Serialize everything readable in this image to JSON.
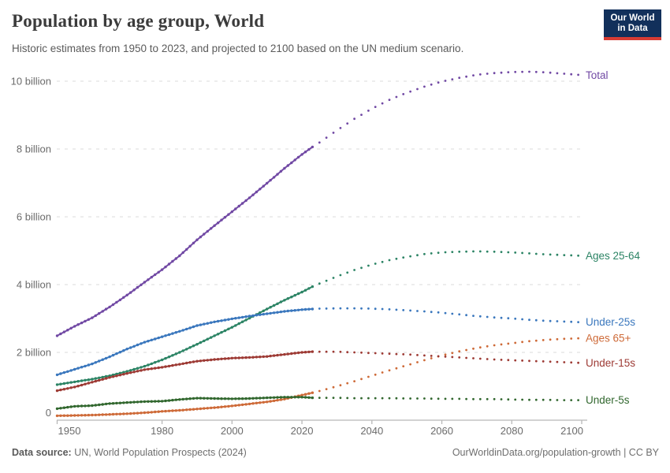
{
  "header": {
    "title": "Population by age group, World",
    "subtitle": "Historic estimates from 1950 to 2023, and projected to 2100 based on the UN medium scenario.",
    "logo": {
      "line1": "Our World",
      "line2": "in Data",
      "bg_color": "#12305b",
      "accent_color": "#d73c34"
    }
  },
  "footer": {
    "source_label": "Data source:",
    "source_text": " UN, World Population Prospects (2024)",
    "credit": "OurWorldinData.org/population-growth | CC BY"
  },
  "chart_data": {
    "type": "line",
    "title": "Population by age group, World",
    "unit": "billion people",
    "grid": true,
    "legend_position": "right-of-line-ends",
    "projection_start": 2023,
    "x_axis": {
      "range": [
        1950,
        2100
      ],
      "ticks": [
        1950,
        1980,
        2000,
        2020,
        2040,
        2060,
        2080,
        2100
      ]
    },
    "y_axis": {
      "range": [
        0,
        10.4
      ],
      "ticks": [
        0,
        2,
        4,
        6,
        8,
        10
      ],
      "tick_labels": [
        "0",
        "2 billion",
        "4 billion",
        "6 billion",
        "8 billion",
        "10 billion"
      ]
    },
    "colors": {
      "grid": "#e2e2e2",
      "axis": "#b8b8b8",
      "tick_label": "#6b6b6b"
    },
    "series": [
      {
        "name": "total",
        "label": "Total",
        "color": "#7149a4",
        "historic": [
          [
            1950,
            2.49
          ],
          [
            1955,
            2.77
          ],
          [
            1960,
            3.02
          ],
          [
            1965,
            3.34
          ],
          [
            1970,
            3.69
          ],
          [
            1975,
            4.07
          ],
          [
            1980,
            4.44
          ],
          [
            1985,
            4.85
          ],
          [
            1990,
            5.32
          ],
          [
            1995,
            5.74
          ],
          [
            2000,
            6.15
          ],
          [
            2005,
            6.56
          ],
          [
            2010,
            6.99
          ],
          [
            2015,
            7.43
          ],
          [
            2020,
            7.84
          ],
          [
            2023,
            8.06
          ]
        ],
        "projected": [
          [
            2023,
            8.06
          ],
          [
            2025,
            8.19
          ],
          [
            2030,
            8.55
          ],
          [
            2035,
            8.89
          ],
          [
            2040,
            9.19
          ],
          [
            2045,
            9.45
          ],
          [
            2050,
            9.66
          ],
          [
            2055,
            9.84
          ],
          [
            2060,
            9.99
          ],
          [
            2065,
            10.1
          ],
          [
            2070,
            10.19
          ],
          [
            2075,
            10.24
          ],
          [
            2080,
            10.27
          ],
          [
            2085,
            10.28
          ],
          [
            2090,
            10.26
          ],
          [
            2095,
            10.22
          ],
          [
            2100,
            10.18
          ]
        ]
      },
      {
        "name": "ages-25-64",
        "label": "Ages 25-64",
        "color": "#2c8465",
        "historic": [
          [
            1950,
            1.05
          ],
          [
            1955,
            1.13
          ],
          [
            1960,
            1.21
          ],
          [
            1965,
            1.31
          ],
          [
            1970,
            1.44
          ],
          [
            1975,
            1.59
          ],
          [
            1980,
            1.78
          ],
          [
            1985,
            2.0
          ],
          [
            1990,
            2.24
          ],
          [
            1995,
            2.49
          ],
          [
            2000,
            2.74
          ],
          [
            2005,
            3.01
          ],
          [
            2010,
            3.28
          ],
          [
            2015,
            3.54
          ],
          [
            2020,
            3.78
          ],
          [
            2023,
            3.94
          ]
        ],
        "projected": [
          [
            2023,
            3.94
          ],
          [
            2025,
            4.03
          ],
          [
            2030,
            4.24
          ],
          [
            2035,
            4.43
          ],
          [
            2040,
            4.59
          ],
          [
            2045,
            4.72
          ],
          [
            2050,
            4.82
          ],
          [
            2055,
            4.9
          ],
          [
            2060,
            4.95
          ],
          [
            2065,
            4.97
          ],
          [
            2070,
            4.98
          ],
          [
            2075,
            4.97
          ],
          [
            2080,
            4.95
          ],
          [
            2085,
            4.92
          ],
          [
            2090,
            4.89
          ],
          [
            2095,
            4.87
          ],
          [
            2100,
            4.85
          ]
        ]
      },
      {
        "name": "under-25s",
        "label": "Under-25s",
        "color": "#3a77bd",
        "historic": [
          [
            1950,
            1.34
          ],
          [
            1955,
            1.5
          ],
          [
            1960,
            1.66
          ],
          [
            1965,
            1.87
          ],
          [
            1970,
            2.1
          ],
          [
            1975,
            2.3
          ],
          [
            1980,
            2.46
          ],
          [
            1985,
            2.62
          ],
          [
            1990,
            2.79
          ],
          [
            1995,
            2.9
          ],
          [
            2000,
            2.99
          ],
          [
            2005,
            3.07
          ],
          [
            2010,
            3.14
          ],
          [
            2015,
            3.21
          ],
          [
            2020,
            3.26
          ],
          [
            2023,
            3.28
          ]
        ],
        "projected": [
          [
            2023,
            3.28
          ],
          [
            2025,
            3.29
          ],
          [
            2030,
            3.3
          ],
          [
            2035,
            3.3
          ],
          [
            2040,
            3.29
          ],
          [
            2045,
            3.27
          ],
          [
            2050,
            3.24
          ],
          [
            2055,
            3.21
          ],
          [
            2060,
            3.17
          ],
          [
            2065,
            3.12
          ],
          [
            2070,
            3.07
          ],
          [
            2075,
            3.03
          ],
          [
            2080,
            3.0
          ],
          [
            2085,
            2.96
          ],
          [
            2090,
            2.93
          ],
          [
            2095,
            2.91
          ],
          [
            2100,
            2.89
          ]
        ]
      },
      {
        "name": "ages-65-plus",
        "label": "Ages 65+",
        "color": "#ce6a38",
        "historic": [
          [
            1950,
            0.13
          ],
          [
            1955,
            0.14
          ],
          [
            1960,
            0.15
          ],
          [
            1965,
            0.17
          ],
          [
            1970,
            0.19
          ],
          [
            1975,
            0.22
          ],
          [
            1980,
            0.26
          ],
          [
            1985,
            0.29
          ],
          [
            1990,
            0.33
          ],
          [
            1995,
            0.37
          ],
          [
            2000,
            0.42
          ],
          [
            2005,
            0.48
          ],
          [
            2010,
            0.54
          ],
          [
            2015,
            0.62
          ],
          [
            2020,
            0.74
          ],
          [
            2023,
            0.81
          ]
        ],
        "projected": [
          [
            2023,
            0.81
          ],
          [
            2025,
            0.86
          ],
          [
            2030,
            1.0
          ],
          [
            2035,
            1.15
          ],
          [
            2040,
            1.31
          ],
          [
            2045,
            1.47
          ],
          [
            2050,
            1.62
          ],
          [
            2055,
            1.77
          ],
          [
            2060,
            1.91
          ],
          [
            2065,
            2.03
          ],
          [
            2070,
            2.13
          ],
          [
            2075,
            2.21
          ],
          [
            2080,
            2.27
          ],
          [
            2085,
            2.33
          ],
          [
            2090,
            2.37
          ],
          [
            2095,
            2.4
          ],
          [
            2100,
            2.42
          ]
        ]
      },
      {
        "name": "under-15s",
        "label": "Under-15s",
        "color": "#9d3a34",
        "historic": [
          [
            1950,
            0.87
          ],
          [
            1955,
            0.98
          ],
          [
            1960,
            1.12
          ],
          [
            1965,
            1.26
          ],
          [
            1970,
            1.38
          ],
          [
            1975,
            1.49
          ],
          [
            1980,
            1.56
          ],
          [
            1985,
            1.65
          ],
          [
            1990,
            1.74
          ],
          [
            1995,
            1.79
          ],
          [
            2000,
            1.83
          ],
          [
            2005,
            1.85
          ],
          [
            2010,
            1.88
          ],
          [
            2015,
            1.94
          ],
          [
            2020,
            2.0
          ],
          [
            2023,
            2.02
          ]
        ],
        "projected": [
          [
            2023,
            2.02
          ],
          [
            2025,
            2.02
          ],
          [
            2030,
            2.02
          ],
          [
            2035,
            2.0
          ],
          [
            2040,
            1.98
          ],
          [
            2045,
            1.96
          ],
          [
            2050,
            1.94
          ],
          [
            2055,
            1.91
          ],
          [
            2060,
            1.88
          ],
          [
            2065,
            1.85
          ],
          [
            2070,
            1.82
          ],
          [
            2075,
            1.79
          ],
          [
            2080,
            1.77
          ],
          [
            2085,
            1.75
          ],
          [
            2090,
            1.73
          ],
          [
            2095,
            1.71
          ],
          [
            2100,
            1.69
          ]
        ]
      },
      {
        "name": "under-5s",
        "label": "Under-5s",
        "color": "#31672e",
        "historic": [
          [
            1950,
            0.34
          ],
          [
            1955,
            0.41
          ],
          [
            1960,
            0.43
          ],
          [
            1965,
            0.49
          ],
          [
            1970,
            0.52
          ],
          [
            1975,
            0.55
          ],
          [
            1980,
            0.56
          ],
          [
            1985,
            0.61
          ],
          [
            1990,
            0.65
          ],
          [
            1995,
            0.64
          ],
          [
            2000,
            0.63
          ],
          [
            2005,
            0.64
          ],
          [
            2010,
            0.66
          ],
          [
            2015,
            0.68
          ],
          [
            2020,
            0.68
          ],
          [
            2023,
            0.66
          ]
        ],
        "projected": [
          [
            2023,
            0.66
          ],
          [
            2025,
            0.66
          ],
          [
            2030,
            0.66
          ],
          [
            2035,
            0.65
          ],
          [
            2040,
            0.65
          ],
          [
            2045,
            0.65
          ],
          [
            2050,
            0.64
          ],
          [
            2055,
            0.64
          ],
          [
            2060,
            0.63
          ],
          [
            2065,
            0.63
          ],
          [
            2070,
            0.62
          ],
          [
            2075,
            0.62
          ],
          [
            2080,
            0.61
          ],
          [
            2085,
            0.6
          ],
          [
            2090,
            0.6
          ],
          [
            2095,
            0.59
          ],
          [
            2100,
            0.59
          ]
        ]
      }
    ]
  }
}
